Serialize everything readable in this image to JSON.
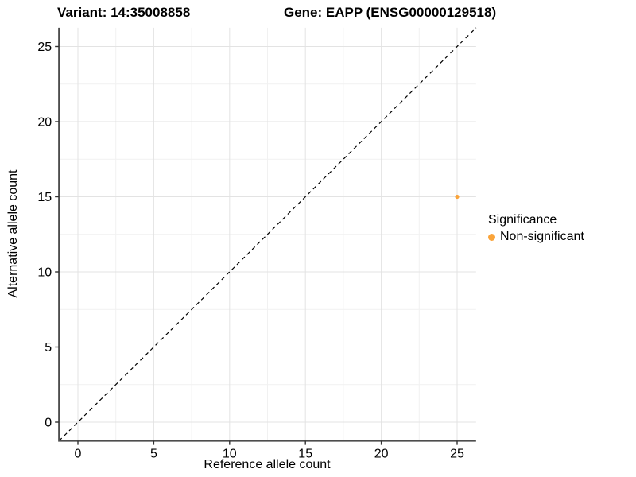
{
  "titles": {
    "variant": "Variant: 14:35008858",
    "gene": "Gene: EAPP (ENSG00000129518)"
  },
  "chart_data": {
    "type": "scatter",
    "xlabel": "Reference allele count",
    "ylabel": "Alternative allele count",
    "xlim": [
      -1.25,
      26.25
    ],
    "ylim": [
      -1.25,
      26.25
    ],
    "x_ticks": [
      0,
      5,
      10,
      15,
      20,
      25
    ],
    "y_ticks": [
      0,
      5,
      10,
      15,
      20,
      25
    ],
    "x_minor_ticks": [
      2.5,
      7.5,
      12.5,
      17.5,
      22.5
    ],
    "y_minor_ticks": [
      2.5,
      7.5,
      12.5,
      17.5,
      22.5
    ],
    "grid": true,
    "points": [
      {
        "x": 25,
        "y": 15,
        "series": "Non-significant"
      }
    ],
    "identity_line": {
      "slope": 1,
      "intercept": 0,
      "style": "dashed",
      "color": "#000000"
    },
    "legend": {
      "title": "Significance",
      "position": "right",
      "entries": [
        {
          "label": "Non-significant",
          "color": "#FAA43A"
        }
      ]
    }
  },
  "colors": {
    "point": "#FAA43A",
    "axis_line": "#4d4d4d",
    "tick": "#333333",
    "grid_major": "#e3e3e3",
    "grid_minor": "#f1f1f1",
    "text": "#000000",
    "background": "#ffffff"
  }
}
